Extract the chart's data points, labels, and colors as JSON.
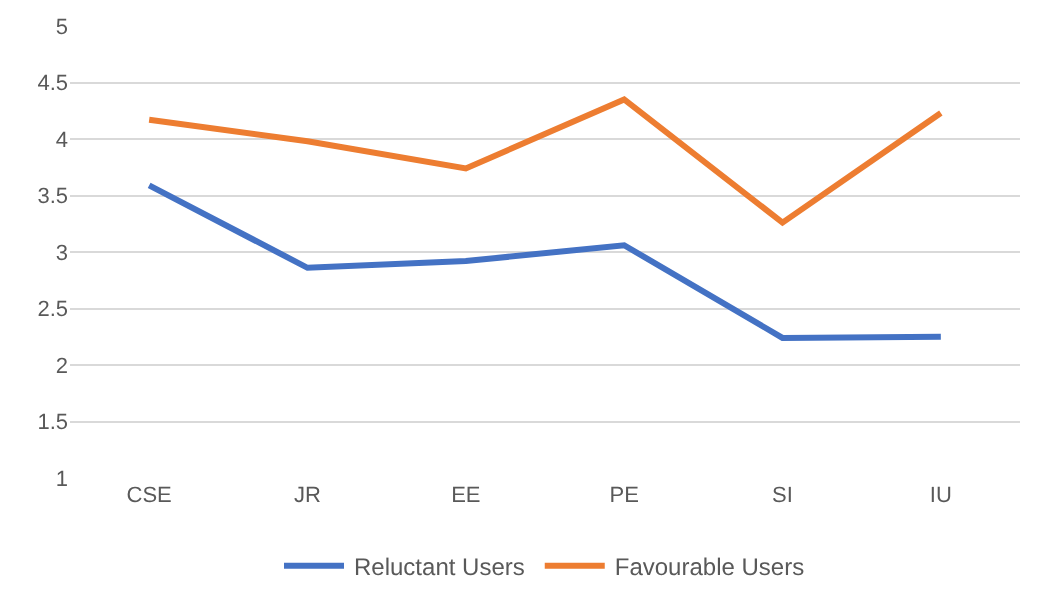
{
  "chart_data": {
    "type": "line",
    "categories": [
      "CSE",
      "JR",
      "EE",
      "PE",
      "SI",
      "IU"
    ],
    "series": [
      {
        "name": "Reluctant Users",
        "color": "#4472c4",
        "values": [
          3.59,
          2.86,
          2.92,
          3.06,
          2.24,
          2.25
        ]
      },
      {
        "name": "Favourable Users",
        "color": "#ed7d31",
        "values": [
          4.17,
          3.98,
          3.74,
          4.35,
          3.26,
          4.23
        ]
      }
    ],
    "ylim": [
      1,
      5
    ],
    "yticks": [
      1,
      1.5,
      2,
      2.5,
      3,
      3.5,
      4,
      4.5,
      5
    ],
    "grid": "y",
    "legend": "bottom",
    "marker": "none",
    "line_style": "solid"
  }
}
